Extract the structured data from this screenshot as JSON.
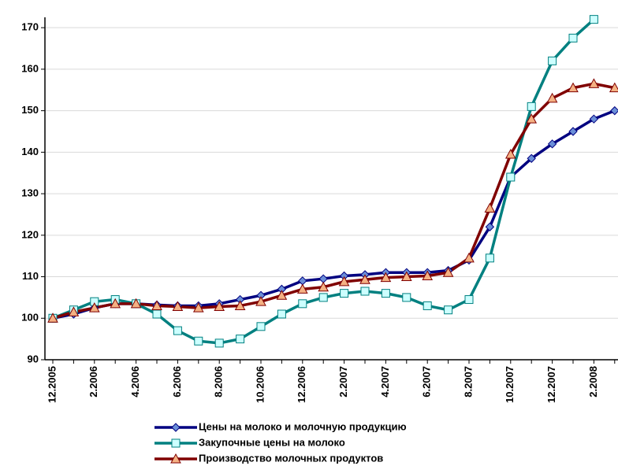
{
  "chart_data": {
    "type": "line",
    "categories": [
      "12.2005",
      null,
      "2.2006",
      null,
      "4.2006",
      null,
      "6.2006",
      null,
      "8.2006",
      null,
      "10.2006",
      null,
      "12.2006",
      null,
      "2.2007",
      null,
      "4.2007",
      null,
      "6.2007",
      null,
      "8.2007",
      null,
      "10.2007",
      null,
      "12.2007",
      null,
      "2.2008",
      null
    ],
    "series": [
      {
        "name": "Цены на молоко и молочную продукцию",
        "color": "#000080",
        "marker": "diamond",
        "marker_color": "#6b8fd8",
        "values": [
          100,
          101,
          102.5,
          103.5,
          103.5,
          103.2,
          103,
          103,
          103.5,
          104.5,
          105.5,
          107,
          109,
          109.5,
          110.2,
          110.5,
          111,
          111,
          111,
          111.5,
          114,
          122,
          134,
          138.5,
          142,
          145,
          148,
          150
        ]
      },
      {
        "name": "Закупочные цены на молоко",
        "color": "#008080",
        "marker": "square",
        "marker_color": "#ccffff",
        "values": [
          100,
          102,
          104,
          104.5,
          103.5,
          101,
          97,
          94.5,
          94,
          95,
          98,
          101,
          103.5,
          105,
          106,
          106.5,
          106,
          105,
          103,
          102,
          104.5,
          114.5,
          134,
          151,
          162,
          167.5,
          172,
          null
        ]
      },
      {
        "name": "Производство молочных продуктов",
        "color": "#800000",
        "marker": "triangle",
        "marker_color": "#f4b183",
        "values": [
          100,
          101.5,
          102.5,
          103.5,
          103.5,
          103,
          102.8,
          102.5,
          102.8,
          103,
          104,
          105.5,
          107,
          107.5,
          108.8,
          109.3,
          109.8,
          110,
          110.2,
          111,
          114.5,
          126.5,
          139.5,
          148,
          153,
          155.5,
          156.5,
          155.5
        ]
      }
    ],
    "ylim": [
      90,
      172.5
    ],
    "yticks": [
      90,
      100,
      110,
      120,
      130,
      140,
      150,
      160,
      170
    ],
    "grid": true,
    "legend": "bottom"
  }
}
